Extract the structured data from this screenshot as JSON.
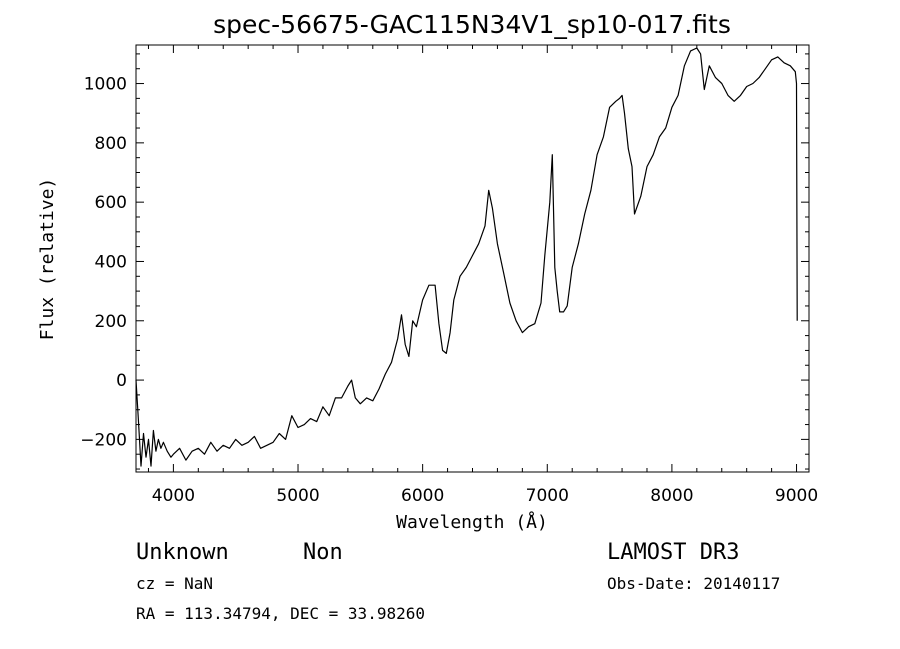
{
  "chart_data": {
    "type": "line",
    "title": "spec-56675-GAC115N34V1_sp10-017.fits",
    "xlabel": "Wavelength (Å)",
    "ylabel": "Flux (relative)",
    "xlim": [
      3700,
      9100
    ],
    "ylim": [
      -310,
      1130
    ],
    "xticks": [
      4000,
      5000,
      6000,
      7000,
      8000,
      9000
    ],
    "xtick_labels": [
      "4000",
      "5000",
      "6000",
      "7000",
      "8000",
      "9000"
    ],
    "yticks": [
      -200,
      0,
      200,
      400,
      600,
      800,
      1000
    ],
    "ytick_labels": [
      "−200",
      "0",
      "200",
      "400",
      "600",
      "800",
      "1000"
    ],
    "grid": false,
    "series": [
      {
        "x": [
          3700,
          3720,
          3740,
          3760,
          3780,
          3800,
          3820,
          3840,
          3860,
          3880,
          3900,
          3920,
          3950,
          3980,
          4000,
          4050,
          4100,
          4150,
          4200,
          4250,
          4300,
          4350,
          4400,
          4450,
          4500,
          4550,
          4600,
          4650,
          4700,
          4750,
          4800,
          4850,
          4900,
          4950,
          5000,
          5050,
          5100,
          5150,
          5200,
          5250,
          5300,
          5350,
          5400,
          5430,
          5460,
          5500,
          5550,
          5600,
          5650,
          5700,
          5750,
          5800,
          5830,
          5860,
          5890,
          5920,
          5950,
          6000,
          6050,
          6100,
          6130,
          6160,
          6190,
          6220,
          6250,
          6300,
          6350,
          6400,
          6450,
          6500,
          6530,
          6560,
          6600,
          6650,
          6700,
          6750,
          6800,
          6850,
          6900,
          6950,
          6980,
          7020,
          7040,
          7060,
          7080,
          7100,
          7130,
          7160,
          7200,
          7250,
          7300,
          7350,
          7400,
          7450,
          7500,
          7550,
          7580,
          7600,
          7620,
          7650,
          7680,
          7700,
          7750,
          7800,
          7850,
          7900,
          7950,
          8000,
          8050,
          8100,
          8150,
          8200,
          8230,
          8260,
          8300,
          8350,
          8400,
          8450,
          8500,
          8550,
          8600,
          8650,
          8700,
          8750,
          8800,
          8850,
          8900,
          8950,
          8990,
          9000,
          9005
        ],
        "y": [
          0,
          -140,
          -290,
          -180,
          -260,
          -200,
          -290,
          -170,
          -240,
          -200,
          -230,
          -210,
          -240,
          -260,
          -250,
          -230,
          -270,
          -240,
          -230,
          -250,
          -210,
          -240,
          -220,
          -230,
          -200,
          -220,
          -210,
          -190,
          -230,
          -220,
          -210,
          -180,
          -200,
          -120,
          -160,
          -150,
          -130,
          -140,
          -90,
          -120,
          -60,
          -60,
          -20,
          0,
          -60,
          -80,
          -60,
          -70,
          -30,
          20,
          60,
          140,
          220,
          120,
          80,
          200,
          180,
          270,
          320,
          320,
          190,
          100,
          90,
          160,
          270,
          350,
          380,
          420,
          460,
          520,
          640,
          580,
          460,
          360,
          260,
          200,
          160,
          180,
          190,
          260,
          420,
          600,
          760,
          380,
          300,
          230,
          230,
          250,
          380,
          460,
          560,
          640,
          760,
          820,
          920,
          940,
          950,
          960,
          900,
          780,
          720,
          560,
          620,
          720,
          760,
          820,
          850,
          920,
          960,
          1060,
          1110,
          1120,
          1100,
          980,
          1060,
          1020,
          1000,
          960,
          940,
          960,
          990,
          1000,
          1020,
          1050,
          1080,
          1090,
          1070,
          1060,
          1040,
          1000,
          200
        ]
      }
    ]
  },
  "info": {
    "object_class": "Unknown",
    "subclass": "Non",
    "survey": "LAMOST DR3",
    "redshift": "cz = NaN",
    "obs_date": "Obs-Date: 20140117",
    "coords": "RA = 113.34794, DEC =  33.98260"
  }
}
